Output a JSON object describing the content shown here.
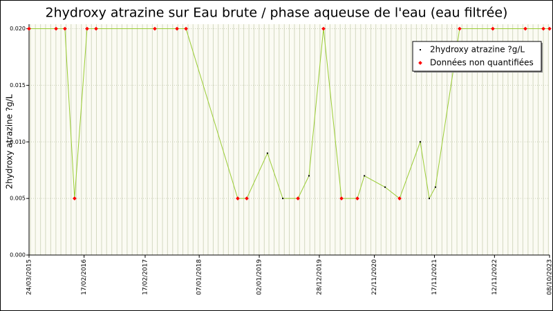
{
  "chart_data": {
    "type": "line",
    "title": "2hydroxy atrazine sur Eau brute / phase aqueuse de l'eau (eau filtrée)",
    "y_label": "2hydroxy atrazine ?g/L",
    "xlim": [
      "24/03/2015",
      "08/10/2023"
    ],
    "xticks": [
      "24/03/2015",
      "17/02/2016",
      "17/02/2017",
      "07/01/2018",
      "02/01/2019",
      "28/12/2019",
      "22/11/2020",
      "17/11/2021",
      "12/11/2022",
      "08/10/2023"
    ],
    "ylim": [
      0,
      0.0204
    ],
    "yticks": [
      {
        "value": 0,
        "label": "0.000"
      },
      {
        "value": 0.005,
        "label": "0.005"
      },
      {
        "value": 0.01,
        "label": "0.010"
      },
      {
        "value": 0.015,
        "label": "0.015"
      },
      {
        "value": 0.02,
        "label": "0.020"
      }
    ],
    "grid": true,
    "legend": "upper right",
    "series": [
      {
        "name": "2hydroxy atrazine ?g/L",
        "color": "#000000",
        "line_color": "#99cc33",
        "x": [
          "24/03/2015",
          "02/09/2015",
          "25/10/2015",
          "22/12/2015",
          "06/03/2016",
          "29/04/2016",
          "16/04/2017",
          "27/08/2017",
          "20/10/2017",
          "26/08/2018",
          "19/10/2018",
          "20/02/2019",
          "23/05/2019",
          "22/08/2019",
          "27/10/2019",
          "22/01/2020",
          "09/05/2020",
          "12/08/2020",
          "23/09/2020",
          "25/01/2021",
          "22/04/2021",
          "24/08/2021",
          "17/10/2021",
          "23/11/2021",
          "17/04/2022",
          "02/11/2022",
          "16/05/2023",
          "01/09/2023",
          "08/10/2023"
        ],
        "values": [
          0.02,
          0.02,
          0.02,
          0.005,
          0.02,
          0.02,
          0.02,
          0.02,
          0.02,
          0.005,
          0.005,
          0.009,
          0.005,
          0.005,
          0.007,
          0.02,
          0.005,
          0.005,
          0.007,
          0.006,
          0.005,
          0.01,
          0.005,
          0.006,
          0.02,
          0.02,
          0.02,
          0.02,
          0.02
        ]
      },
      {
        "name": "Données non quantifiées",
        "color": "#ff0000",
        "x": [
          "24/03/2015",
          "02/09/2015",
          "25/10/2015",
          "22/12/2015",
          "06/03/2016",
          "29/04/2016",
          "16/04/2017",
          "27/08/2017",
          "20/10/2017",
          "26/08/2018",
          "19/10/2018",
          "22/08/2019",
          "22/01/2020",
          "09/05/2020",
          "12/08/2020",
          "22/04/2021",
          "17/04/2022",
          "02/11/2022",
          "16/05/2023",
          "01/09/2023",
          "08/10/2023"
        ],
        "values": [
          0.02,
          0.02,
          0.02,
          0.005,
          0.02,
          0.02,
          0.02,
          0.02,
          0.02,
          0.005,
          0.005,
          0.005,
          0.02,
          0.005,
          0.005,
          0.005,
          0.02,
          0.02,
          0.02,
          0.02,
          0.02
        ]
      }
    ]
  }
}
